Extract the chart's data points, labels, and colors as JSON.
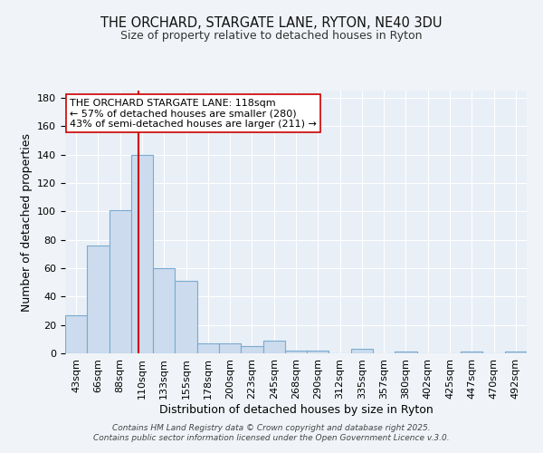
{
  "title_line1": "THE ORCHARD, STARGATE LANE, RYTON, NE40 3DU",
  "title_line2": "Size of property relative to detached houses in Ryton",
  "xlabel": "Distribution of detached houses by size in Ryton",
  "ylabel": "Number of detached properties",
  "bar_labels": [
    "43sqm",
    "66sqm",
    "88sqm",
    "110sqm",
    "133sqm",
    "155sqm",
    "178sqm",
    "200sqm",
    "223sqm",
    "245sqm",
    "268sqm",
    "290sqm",
    "312sqm",
    "335sqm",
    "357sqm",
    "380sqm",
    "402sqm",
    "425sqm",
    "447sqm",
    "470sqm",
    "492sqm"
  ],
  "bar_values": [
    27,
    76,
    101,
    140,
    60,
    51,
    7,
    7,
    5,
    9,
    2,
    2,
    0,
    3,
    0,
    1,
    0,
    0,
    1,
    0,
    1
  ],
  "bar_color": "#ccdcee",
  "bar_edge_color": "#7aaad0",
  "bg_color": "#f0f4f8",
  "plot_bg_color": "#e8eff7",
  "grid_color": "#ffffff",
  "red_line_x": 3.35,
  "red_line_color": "#cc0000",
  "annotation_line1": "THE ORCHARD STARGATE LANE: 118sqm",
  "annotation_line2": "← 57% of detached houses are smaller (280)",
  "annotation_line3": "43% of semi-detached houses are larger (211) →",
  "annotation_box_edge": "#cc0000",
  "annotation_fontsize": 8,
  "ylim": [
    0,
    185
  ],
  "yticks": [
    0,
    20,
    40,
    60,
    80,
    100,
    120,
    140,
    160,
    180
  ],
  "footer": "Contains HM Land Registry data © Crown copyright and database right 2025.\nContains public sector information licensed under the Open Government Licence v.3.0.",
  "title_fontsize": 10.5,
  "subtitle_fontsize": 9,
  "axis_label_fontsize": 9,
  "tick_fontsize": 8
}
